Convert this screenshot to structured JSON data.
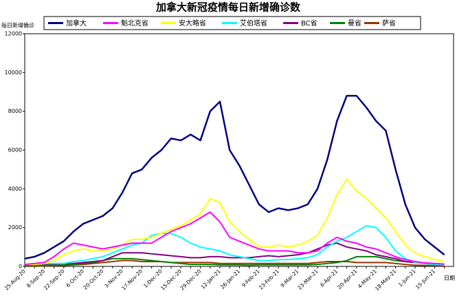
{
  "chart_data": {
    "type": "line",
    "title": "加拿大新冠疫情每日新增确诊数",
    "y_label": "每日新增确诊",
    "x_label": "日期",
    "categories": [
      "25-Aug-20",
      null,
      "8-Sep-20",
      null,
      "22-Sep-20",
      null,
      "6-Oct-20",
      null,
      "20-Oct-20",
      null,
      "3-Nov-20",
      null,
      "17-Nov-20",
      null,
      "1-Dec-20",
      null,
      "15-Dec-20",
      null,
      "29-Dec-20",
      null,
      "12-Jan-21",
      null,
      "26-Jan-21",
      null,
      "9-Feb-21",
      null,
      "23-Feb-21",
      null,
      "9-Mar-21",
      null,
      "23-Mar-21",
      null,
      "6-Apr-21",
      null,
      "20-Apr-21",
      null,
      "4-May-21",
      null,
      "18-May-21",
      null,
      "1-Jun-21",
      null,
      "15-Jun-21",
      null
    ],
    "series": [
      {
        "name": "加拿大",
        "color": "#000080",
        "values": [
          400,
          500,
          700,
          1000,
          1300,
          1800,
          2200,
          2400,
          2600,
          3000,
          3800,
          4800,
          5000,
          5600,
          6000,
          6600,
          6500,
          6800,
          6500,
          8000,
          8500,
          6000,
          5200,
          4200,
          3200,
          2800,
          3000,
          2900,
          3000,
          3200,
          4000,
          5500,
          7500,
          8800,
          8800,
          8200,
          7500,
          7000,
          5000,
          3200,
          2000,
          1400,
          1000,
          600
        ]
      },
      {
        "name": "魁北克省",
        "color": "#ff00ff",
        "values": [
          100,
          150,
          200,
          500,
          900,
          1200,
          1100,
          1000,
          900,
          1000,
          1100,
          1200,
          1200,
          1200,
          1500,
          1800,
          2000,
          2200,
          2500,
          2800,
          2300,
          1500,
          1300,
          1100,
          900,
          800,
          800,
          800,
          700,
          700,
          800,
          1200,
          1500,
          1300,
          1200,
          1000,
          900,
          700,
          500,
          350,
          250,
          180,
          150,
          120
        ]
      },
      {
        "name": "安大略省",
        "color": "#ffff00",
        "values": [
          100,
          100,
          150,
          300,
          600,
          800,
          900,
          800,
          800,
          900,
          1100,
          1400,
          1400,
          1500,
          1700,
          1900,
          2100,
          2400,
          2700,
          3500,
          3300,
          2300,
          1800,
          1400,
          1000,
          1000,
          1100,
          1000,
          1100,
          1300,
          1600,
          2500,
          3700,
          4500,
          3900,
          3500,
          3000,
          2500,
          1800,
          1100,
          700,
          500,
          350,
          250
        ]
      },
      {
        "name": "艾伯塔省",
        "color": "#00ffff",
        "values": [
          100,
          100,
          150,
          150,
          150,
          250,
          300,
          400,
          500,
          700,
          900,
          1100,
          1200,
          1600,
          1700,
          1700,
          1500,
          1200,
          1000,
          900,
          800,
          600,
          500,
          400,
          300,
          300,
          350,
          350,
          400,
          450,
          600,
          1000,
          1300,
          1500,
          1800,
          2100,
          2000,
          1500,
          800,
          400,
          200,
          150,
          100,
          80
        ]
      },
      {
        "name": "BC省",
        "color": "#800080",
        "values": [
          80,
          100,
          120,
          120,
          150,
          150,
          200,
          250,
          300,
          500,
          700,
          700,
          700,
          650,
          600,
          550,
          500,
          450,
          450,
          500,
          500,
          450,
          450,
          450,
          500,
          550,
          500,
          550,
          600,
          700,
          900,
          1100,
          1200,
          1000,
          900,
          800,
          600,
          500,
          400,
          250,
          200,
          150,
          120,
          100
        ]
      },
      {
        "name": "曼省",
        "color": "#008000",
        "values": [
          20,
          40,
          50,
          60,
          80,
          100,
          150,
          200,
          300,
          400,
          400,
          400,
          350,
          300,
          250,
          200,
          150,
          100,
          100,
          100,
          80,
          80,
          80,
          60,
          80,
          80,
          80,
          80,
          80,
          80,
          100,
          150,
          200,
          300,
          500,
          500,
          500,
          400,
          300,
          250,
          200,
          150,
          100,
          80
        ]
      },
      {
        "name": "萨省",
        "color": "#993300",
        "values": [
          10,
          10,
          20,
          30,
          50,
          80,
          100,
          150,
          200,
          250,
          300,
          300,
          250,
          250,
          250,
          200,
          200,
          200,
          200,
          200,
          150,
          150,
          150,
          150,
          150,
          150,
          150,
          150,
          150,
          150,
          200,
          250,
          250,
          250,
          200,
          200,
          200,
          200,
          150,
          100,
          60,
          50,
          40,
          30
        ]
      }
    ],
    "ylim": [
      0,
      12000
    ],
    "yticks": [
      0,
      2000,
      4000,
      6000,
      8000,
      10000,
      12000
    ]
  }
}
